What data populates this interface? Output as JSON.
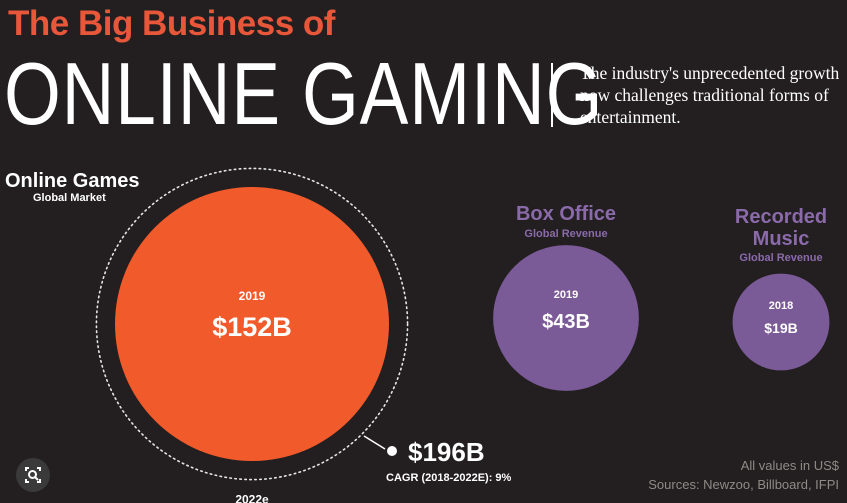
{
  "header": {
    "title_small": "The Big Business of",
    "title_big": "ONLINE GAMING",
    "subtitle": "The industry's unprecedented growth now challenges traditional forms of entertainment."
  },
  "colors": {
    "online_games": "#f15a2b",
    "box_office": "#7b5a98",
    "recorded_music": "#7b5a98",
    "title_accent": "#e8573a",
    "label_purple": "#8a6aaa"
  },
  "chart_data": {
    "type": "bubble",
    "groups": [
      {
        "name": "Online Games",
        "sublabel": "Global Market",
        "year": "2019",
        "value": 152,
        "value_label": "$152B",
        "projection": {
          "year": "2022e",
          "value": 196,
          "value_label": "$196B",
          "note": "CAGR (2018-2022E): 9%"
        }
      },
      {
        "name": "Box Office",
        "sublabel": "Global Revenue",
        "year": "2019",
        "value": 43,
        "value_label": "$43B"
      },
      {
        "name": "Recorded Music",
        "sublabel": "Global Revenue",
        "year": "2018",
        "value": 19,
        "value_label": "$19B"
      }
    ],
    "units_note": "All values in US$",
    "sources": "Sources: Newzoo, Billboard, IFPI"
  },
  "icons": {
    "lens": "image-search-icon"
  }
}
